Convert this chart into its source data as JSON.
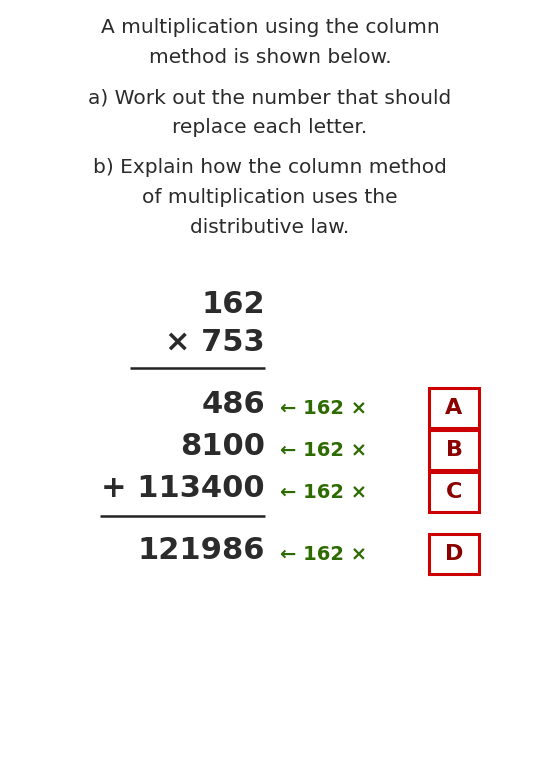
{
  "bg_color": "#ffffff",
  "text_color_dark": "#2b2b2b",
  "text_color_green": "#2d6a00",
  "text_color_red": "#8b0000",
  "box_color_red": "#cc0000",
  "title_line1": "A multiplication using the column",
  "title_line2": "method is shown below.",
  "part_a_line1": "a) Work out the number that should",
  "part_a_line2": "replace each letter.",
  "part_b_line1": "b) Explain how the column method",
  "part_b_line2": "of multiplication uses the",
  "part_b_line3": "distributive law.",
  "num1": "162",
  "num2": "× 753",
  "rows": [
    {
      "result": "486",
      "annotation": "← 162 ×",
      "letter": "A"
    },
    {
      "result": "8100",
      "annotation": "← 162 ×",
      "letter": "B"
    },
    {
      "result": "+ 113400",
      "annotation": "← 162 ×",
      "letter": "C"
    }
  ],
  "total": "121986",
  "total_annotation": "← 162 ×",
  "total_letter": "D",
  "line_color": "#222222",
  "figsize": [
    5.4,
    7.8
  ],
  "dpi": 100
}
